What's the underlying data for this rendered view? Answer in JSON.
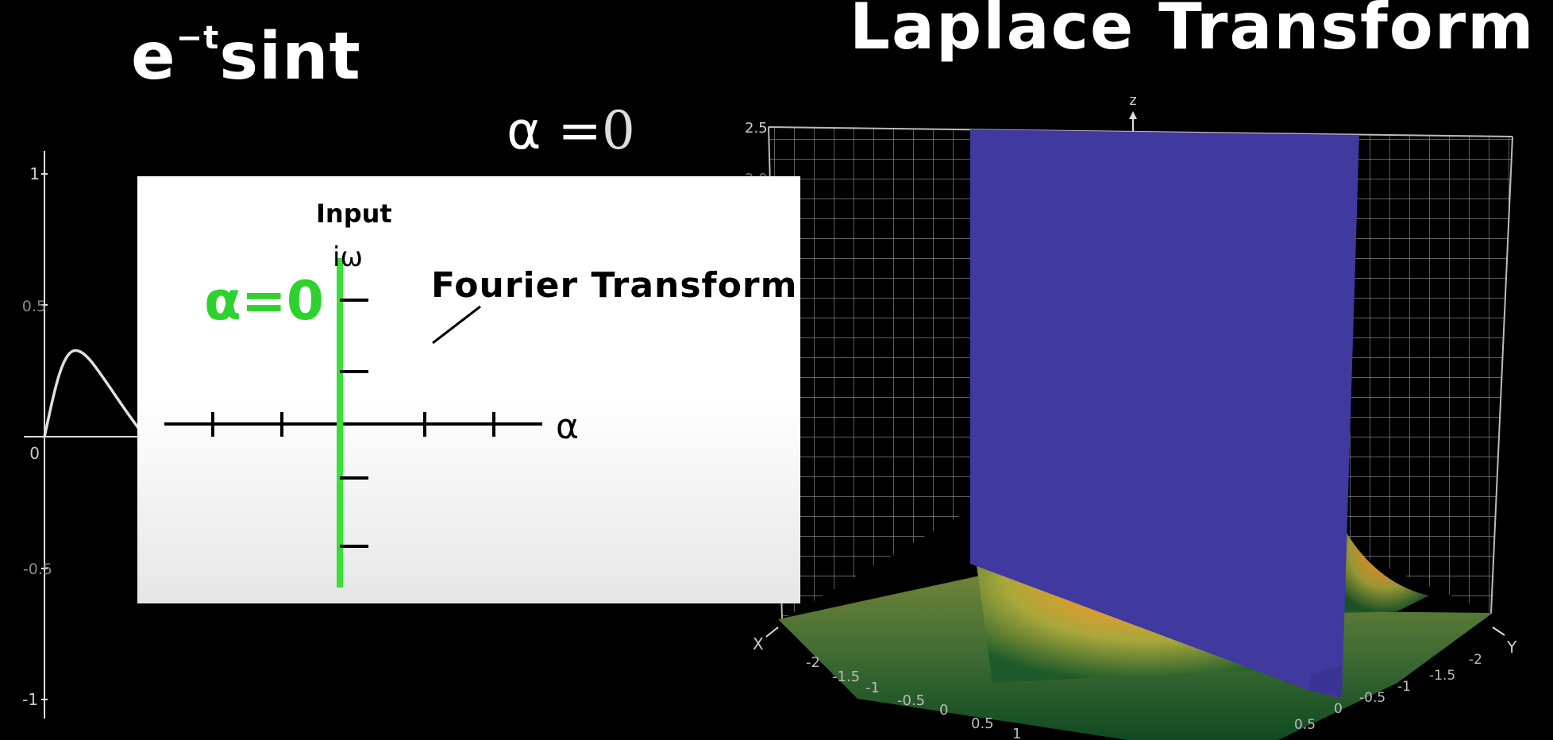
{
  "formula": {
    "base": "e",
    "exponent": "−t",
    "rest": "sint"
  },
  "title": "Laplace Transform",
  "alpha_readout": {
    "symbol": "α",
    "equals": "=",
    "value": "0"
  },
  "time_plot": {
    "y_ticks": [
      "1",
      "0.5",
      "0",
      "-0.5",
      "-1"
    ],
    "curve_color": "#e0e0e0"
  },
  "complex_plane": {
    "input_label": "Input",
    "omega_label": "iω",
    "alpha_value_label": "α=0",
    "fourier_label": "Fourier Transform",
    "alpha_axis_label": "α",
    "line_color": "#33dd33"
  },
  "surface_plot": {
    "z_axis_label": "z",
    "x_axis_label": "X",
    "y_axis_label": "Y",
    "z_ticks": [
      "2.5",
      "2.0"
    ],
    "x_ticks": [
      "-2",
      "-1.5",
      "-1",
      "-0.5",
      "0",
      "0.5",
      "1"
    ],
    "y_ticks": [
      "-2",
      "-1.5",
      "-1",
      "-0.5",
      "0",
      "0.5"
    ],
    "plane_color": "#3f39a0"
  }
}
